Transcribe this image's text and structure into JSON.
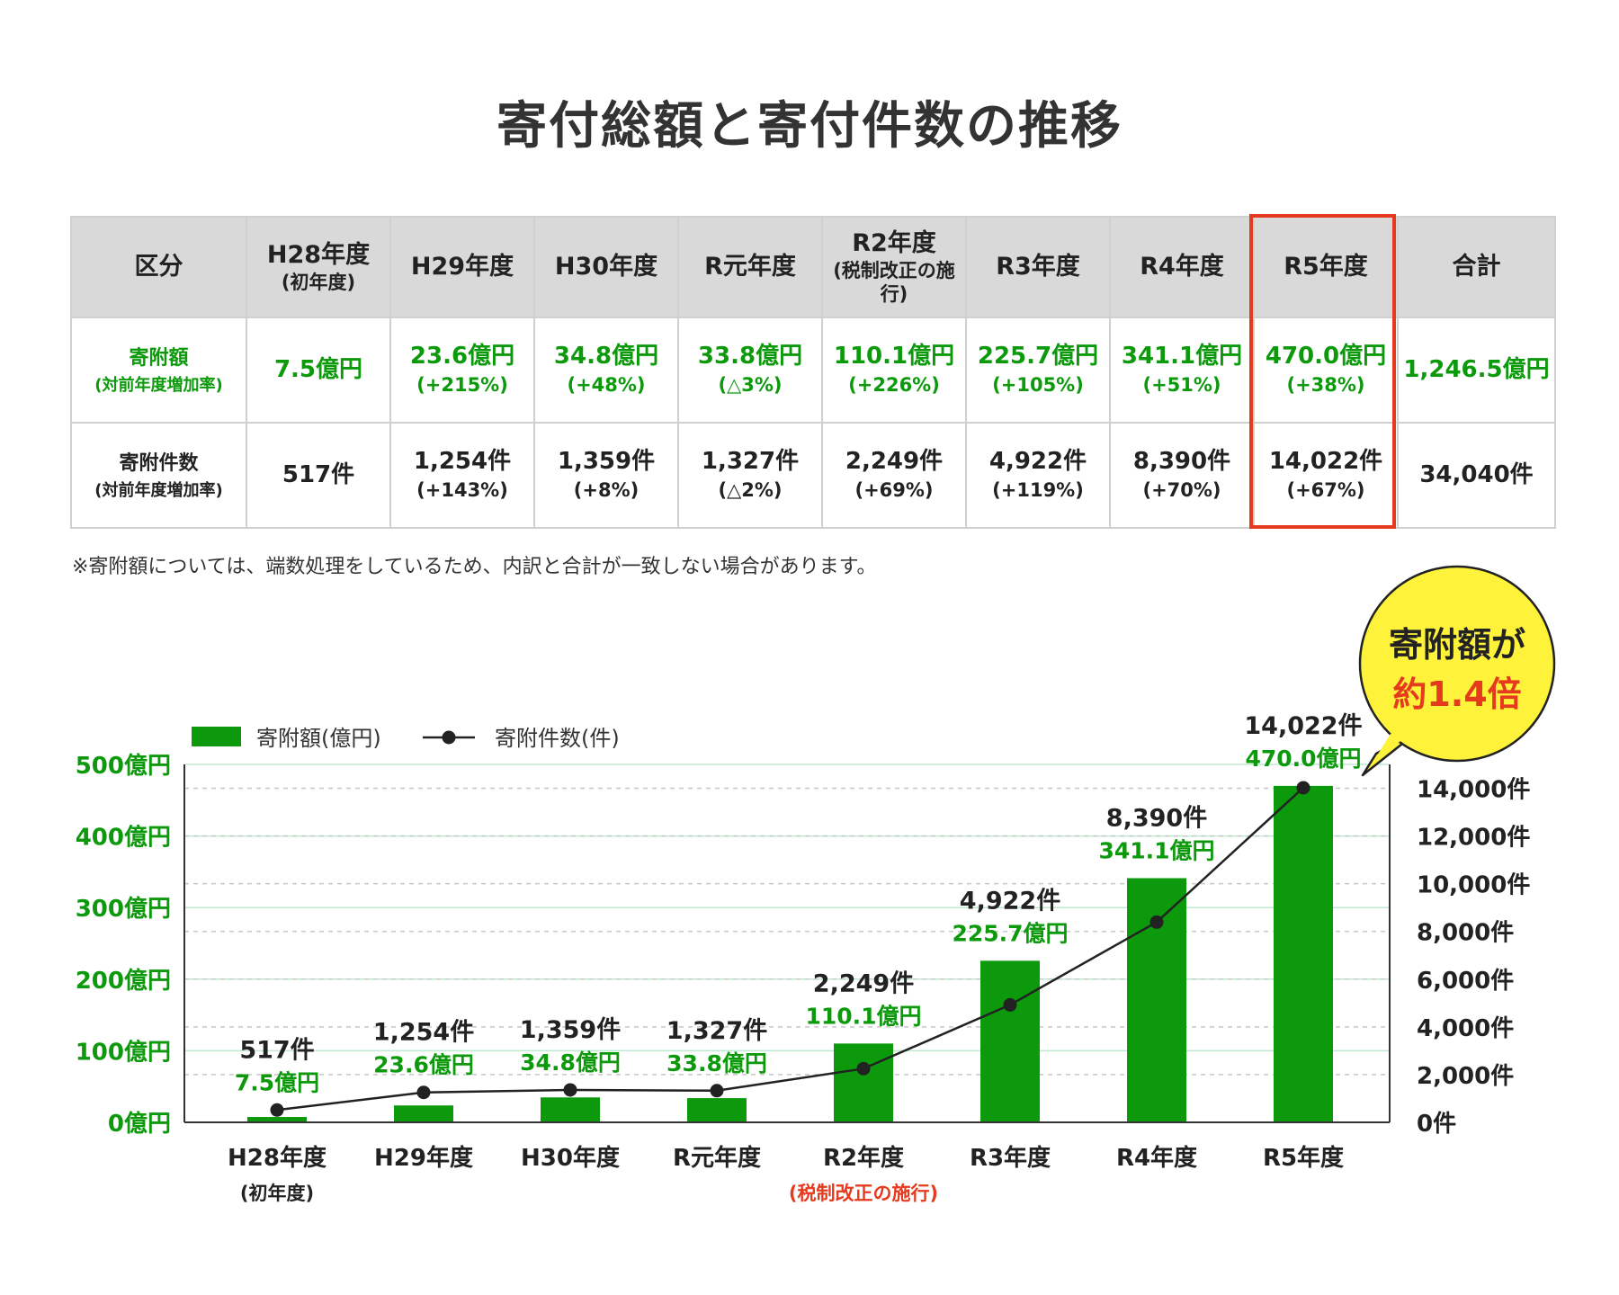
{
  "title": "寄付総額と寄付件数の推移",
  "table": {
    "columns": [
      {
        "label": "区分",
        "sub": ""
      },
      {
        "label": "H28年度",
        "sub": "(初年度)"
      },
      {
        "label": "H29年度",
        "sub": ""
      },
      {
        "label": "H30年度",
        "sub": ""
      },
      {
        "label": "R元年度",
        "sub": ""
      },
      {
        "label": "R2年度",
        "sub": "(税制改正の施行)"
      },
      {
        "label": "R3年度",
        "sub": ""
      },
      {
        "label": "R4年度",
        "sub": ""
      },
      {
        "label": "R5年度",
        "sub": ""
      },
      {
        "label": "合計",
        "sub": ""
      }
    ],
    "rows": [
      {
        "label": "寄附額",
        "sub": "(対前年度増加率)",
        "cells": [
          {
            "main": "7.5億円",
            "sub": ""
          },
          {
            "main": "23.6億円",
            "sub": "(+215%)"
          },
          {
            "main": "34.8億円",
            "sub": "(+48%)"
          },
          {
            "main": "33.8億円",
            "sub": "(△3%)"
          },
          {
            "main": "110.1億円",
            "sub": "(+226%)"
          },
          {
            "main": "225.7億円",
            "sub": "(+105%)"
          },
          {
            "main": "341.1億円",
            "sub": "(+51%)"
          },
          {
            "main": "470.0億円",
            "sub": "(+38%)"
          },
          {
            "main": "1,246.5億円",
            "sub": ""
          }
        ]
      },
      {
        "label": "寄附件数",
        "sub": "(対前年度増加率)",
        "cells": [
          {
            "main": "517件",
            "sub": ""
          },
          {
            "main": "1,254件",
            "sub": "(+143%)"
          },
          {
            "main": "1,359件",
            "sub": "(+8%)"
          },
          {
            "main": "1,327件",
            "sub": "(△2%)"
          },
          {
            "main": "2,249件",
            "sub": "(+69%)"
          },
          {
            "main": "4,922件",
            "sub": "(+119%)"
          },
          {
            "main": "8,390件",
            "sub": "(+70%)"
          },
          {
            "main": "14,022件",
            "sub": "(+67%)"
          },
          {
            "main": "34,040件",
            "sub": ""
          }
        ]
      }
    ],
    "note": "※寄附額については、端数処理をしているため、内訳と合計が一致しない場合があります。"
  },
  "callout": {
    "line1": "寄附額が",
    "line2": "約1.4倍"
  },
  "chart_data": {
    "type": "bar",
    "categories": [
      "H28年度",
      "H29年度",
      "H30年度",
      "R元年度",
      "R2年度",
      "R3年度",
      "R4年度",
      "R5年度"
    ],
    "category_sub": [
      "(初年度)",
      "",
      "",
      "",
      "(税制改正の施行)",
      "",
      "",
      ""
    ],
    "series": [
      {
        "name": "寄附額(億円)",
        "type": "bar",
        "axis": "left",
        "values": [
          7.5,
          23.6,
          34.8,
          33.8,
          110.1,
          225.7,
          341.1,
          470.0
        ],
        "labels": [
          "7.5億円",
          "23.6億円",
          "34.8億円",
          "33.8億円",
          "110.1億円",
          "225.7億円",
          "341.1億円",
          "470.0億円"
        ]
      },
      {
        "name": "寄附件数(件)",
        "type": "line",
        "axis": "right",
        "values": [
          517,
          1254,
          1359,
          1327,
          2249,
          4922,
          8390,
          14022
        ],
        "labels": [
          "517件",
          "1,254件",
          "1,359件",
          "1,327件",
          "2,249件",
          "4,922件",
          "8,390件",
          "14,022件"
        ]
      }
    ],
    "y_left": {
      "range": [
        0,
        500
      ],
      "ticks": [
        0,
        100,
        200,
        300,
        400,
        500
      ],
      "tick_labels": [
        "0億円",
        "100億円",
        "200億円",
        "300億円",
        "400億円",
        "500億円"
      ]
    },
    "y_right": {
      "range": [
        0,
        15000
      ],
      "ticks": [
        0,
        2000,
        4000,
        6000,
        8000,
        10000,
        12000,
        14000
      ],
      "tick_labels": [
        "0件",
        "2,000件",
        "4,000件",
        "6,000件",
        "8,000件",
        "10,000件",
        "12,000件",
        "14,000件"
      ]
    },
    "grid": true,
    "legend": "top-left",
    "colors": {
      "bar": "#0c9a0c",
      "line": "#222222",
      "bar_label": "#0c9a0c",
      "count_label": "#222222",
      "left_axis": "#0c9a0c",
      "right_axis": "#222222",
      "highlight_sub": "#e63a1e"
    }
  }
}
